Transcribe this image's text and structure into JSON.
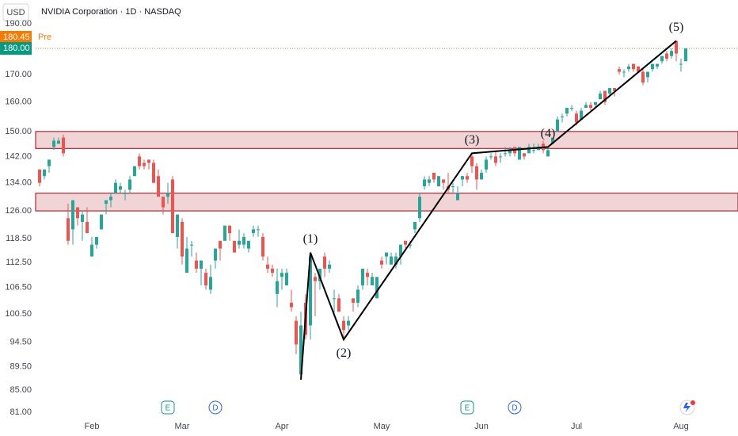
{
  "chart_data": {
    "type": "candlestick",
    "currency": "USD",
    "title": "NVIDIA Corporation · 1D · NASDAQ",
    "log_scale": true,
    "grid": false,
    "up_color": "#26a69a",
    "down_color": "#ef5350",
    "ylim": [
      81,
      190
    ],
    "yticks": [
      {
        "value": 190,
        "label": "190.00"
      },
      {
        "value": 170,
        "label": "170.00"
      },
      {
        "value": 160,
        "label": "160.00"
      },
      {
        "value": 150,
        "label": "150.00"
      },
      {
        "value": 142,
        "label": "142.00"
      },
      {
        "value": 134,
        "label": "134.00"
      },
      {
        "value": 126,
        "label": "126.00"
      },
      {
        "value": 118.5,
        "label": "118.50"
      },
      {
        "value": 112.5,
        "label": "112.50"
      },
      {
        "value": 106.5,
        "label": "106.50"
      },
      {
        "value": 100.5,
        "label": "100.50"
      },
      {
        "value": 94.5,
        "label": "94.50"
      },
      {
        "value": 89.5,
        "label": "89.50"
      },
      {
        "value": 85,
        "label": "85.00"
      },
      {
        "value": 81,
        "label": "81.00"
      }
    ],
    "categories": [
      null,
      null,
      null,
      null,
      null,
      null,
      null,
      null,
      null,
      null,
      null,
      "Feb",
      null,
      null,
      null,
      null,
      null,
      null,
      null,
      null,
      null,
      null,
      null,
      null,
      null,
      null,
      null,
      null,
      null,
      null,
      "Mar",
      null,
      null,
      null,
      null,
      null,
      null,
      null,
      null,
      null,
      null,
      null,
      null,
      null,
      null,
      null,
      null,
      null,
      null,
      null,
      null,
      "Apr",
      null,
      null,
      null,
      null,
      null,
      null,
      null,
      null,
      null,
      null,
      null,
      null,
      null,
      null,
      null,
      null,
      null,
      null,
      null,
      null,
      "May",
      null,
      null,
      null,
      null,
      null,
      null,
      null,
      null,
      null,
      null,
      null,
      null,
      null,
      null,
      null,
      null,
      null,
      null,
      null,
      null,
      "Jun",
      null,
      null,
      null,
      null,
      null,
      null,
      null,
      null,
      null,
      null,
      null,
      null,
      null,
      null,
      null,
      null,
      null,
      null,
      null,
      "Jul",
      null,
      null,
      null,
      null,
      null,
      null,
      null,
      null,
      null,
      null,
      null,
      null,
      null,
      null,
      null,
      null,
      null,
      null,
      null,
      null,
      null,
      "Aug",
      null
    ],
    "open": [
      138,
      136,
      139,
      145,
      146,
      148,
      124,
      121,
      127,
      123,
      123,
      114,
      117,
      121,
      128,
      129,
      131,
      132,
      131,
      132,
      136,
      142,
      140,
      141,
      140,
      136,
      130,
      130,
      135,
      119,
      123,
      110,
      117,
      113,
      111,
      110,
      106,
      113,
      118,
      118,
      122,
      118,
      117,
      117,
      116,
      120,
      121,
      119,
      112,
      111,
      105,
      109,
      107,
      103,
      99,
      88,
      103,
      98,
      109,
      108,
      114,
      111,
      104,
      104,
      99,
      98,
      104,
      103,
      107,
      110,
      107,
      104,
      113,
      114,
      112,
      112,
      114,
      118,
      117,
      121,
      124,
      133,
      134,
      137,
      133,
      135,
      133,
      133,
      129,
      135,
      136,
      142,
      139,
      135,
      138,
      142,
      142,
      142,
      143,
      143,
      145,
      141,
      143,
      143,
      144,
      144,
      146,
      142,
      146,
      150,
      155,
      156,
      158,
      156,
      154,
      158,
      159,
      159,
      161,
      164,
      163,
      165,
      172,
      171,
      172,
      174,
      173,
      171,
      169,
      172,
      173,
      175,
      178,
      177,
      183,
      174,
      175
    ],
    "high": [
      138,
      138,
      141,
      148,
      148,
      149,
      128,
      129,
      127,
      126,
      127,
      119,
      119,
      125,
      129,
      131,
      135,
      134,
      132,
      136,
      139,
      143,
      141,
      141,
      141,
      138,
      130,
      134,
      136,
      125,
      124,
      119,
      118,
      115,
      113,
      111,
      112,
      116,
      118,
      122,
      122,
      118,
      121,
      120,
      118,
      122,
      122,
      120,
      114,
      112,
      111,
      111,
      111,
      106,
      100,
      101,
      105,
      115,
      110,
      111,
      115,
      113,
      106,
      105,
      100,
      100,
      104,
      107,
      111,
      111,
      110,
      109,
      114,
      115,
      115,
      115,
      117,
      118,
      118,
      123,
      131,
      136,
      136,
      137,
      136,
      135,
      137,
      134,
      133,
      136,
      137,
      143,
      140,
      138,
      142,
      143,
      144,
      143,
      145,
      145,
      145,
      145,
      143,
      146,
      146,
      146,
      147,
      145,
      148,
      155,
      156,
      158,
      159,
      157,
      158,
      160,
      160,
      160,
      164,
      164,
      165,
      165,
      173,
      172,
      174,
      174,
      173,
      172,
      171,
      174,
      174,
      177,
      179,
      180,
      183,
      176,
      180
    ],
    "low": [
      133,
      135,
      137,
      144,
      146,
      142,
      117,
      117,
      122,
      118,
      120,
      114,
      116,
      121,
      125,
      127,
      131,
      131,
      129,
      131,
      136,
      138,
      138,
      138,
      134,
      130,
      125,
      128,
      120,
      116,
      112,
      110,
      114,
      110,
      107,
      106,
      105,
      111,
      113,
      118,
      118,
      115,
      116,
      116,
      115,
      119,
      119,
      113,
      110,
      109,
      102,
      106,
      107,
      101,
      92,
      87,
      95,
      95,
      100,
      106,
      109,
      110,
      100,
      101,
      95,
      97,
      101,
      102,
      106,
      107,
      107,
      104,
      111,
      112,
      112,
      111,
      112,
      116,
      116,
      120,
      123,
      132,
      133,
      134,
      133,
      132,
      131,
      131,
      129,
      133,
      134,
      137,
      132,
      135,
      137,
      141,
      139,
      140,
      142,
      142,
      142,
      141,
      141,
      143,
      143,
      144,
      143,
      142,
      146,
      150,
      153,
      155,
      157,
      152,
      154,
      158,
      157,
      158,
      161,
      159,
      162,
      162,
      170,
      169,
      171,
      171,
      171,
      166,
      167,
      171,
      172,
      174,
      175,
      176,
      175,
      171,
      175
    ],
    "close": [
      134,
      138,
      141,
      147,
      147,
      143,
      118,
      129,
      124,
      125,
      120,
      117,
      119,
      125,
      129,
      130,
      134,
      133,
      131,
      135,
      139,
      139,
      139,
      140,
      134,
      130,
      127,
      131,
      120,
      125,
      114,
      116,
      117,
      111,
      113,
      107,
      109,
      116,
      116,
      122,
      120,
      115,
      118,
      119,
      118,
      121,
      121,
      114,
      111,
      110,
      108,
      110,
      110,
      102,
      94,
      98,
      96,
      114,
      108,
      111,
      111,
      112,
      104,
      101,
      97,
      99,
      103,
      106,
      111,
      109,
      109,
      109,
      112,
      115,
      114,
      114,
      117,
      117,
      117,
      123,
      130,
      135,
      135,
      135,
      136,
      134,
      132,
      133,
      131,
      136,
      135,
      139,
      135,
      137,
      141,
      142,
      140,
      142,
      143,
      144,
      143,
      145,
      142,
      145,
      144,
      145,
      144,
      144,
      148,
      154,
      155,
      158,
      158,
      153,
      157,
      159,
      158,
      160,
      163,
      160,
      165,
      164,
      171,
      171,
      173,
      172,
      171,
      167,
      171,
      174,
      174,
      177,
      176,
      179,
      178,
      174,
      180
    ],
    "zones": [
      {
        "low": 144.5,
        "high": 150
      },
      {
        "low": 126,
        "high": 131
      }
    ],
    "zone_color": "#b22833",
    "wave": {
      "x": [
        55,
        57,
        64,
        91,
        107,
        134
      ],
      "values": [
        87,
        115,
        95,
        143,
        145,
        183
      ],
      "labels": [
        null,
        "(1)",
        "(2)",
        "(3)",
        "(4)",
        "(5)"
      ]
    },
    "pre_market": {
      "value": 180.45,
      "label": "180.45",
      "tag": "Pre"
    },
    "last_price": {
      "value": 180,
      "label": "180.00"
    },
    "events": [
      {
        "label": "E",
        "x": 27
      },
      {
        "label": "D",
        "x": 37
      },
      {
        "label": "E",
        "x": 90
      },
      {
        "label": "D",
        "x": 100
      }
    ]
  }
}
